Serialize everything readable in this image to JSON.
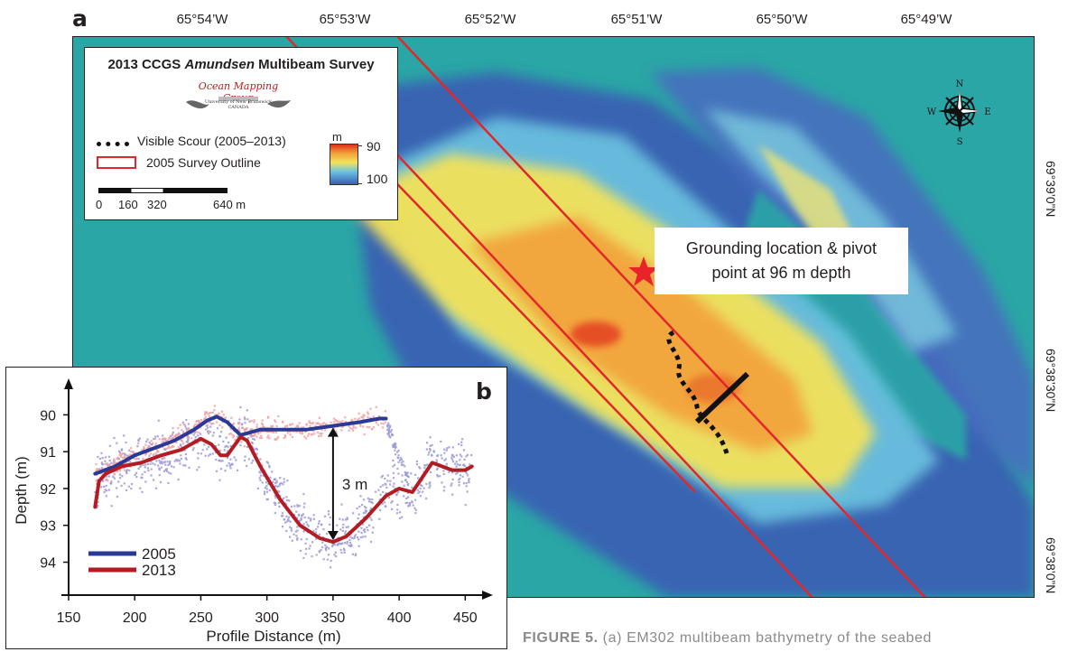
{
  "panel_a": {
    "label": "a",
    "longitude_labels": [
      "65°54’W",
      "65°53’W",
      "65°52’W",
      "65°51’W",
      "65°50’W",
      "65°49’W"
    ],
    "latitude_labels": [
      "69°39’0”N",
      "69°38’30”N",
      "69°38’0”N"
    ],
    "legend": {
      "title_prefix": "2013 CCGS ",
      "title_italic": "Amundsen",
      "title_suffix": " Multibeam Survey",
      "logo_name": "Ocean Mapping Group",
      "logo_sub_1": "University of New Brunswick",
      "logo_sub_2": "CANADA",
      "scour_label": "Visible Scour (2005–2013)",
      "outline_label": "2005 Survey Outline",
      "depth_unit": "m",
      "depth_min": "90",
      "depth_max": "100",
      "scale_ticks": [
        "0",
        "160",
        "320",
        "640 m"
      ]
    },
    "compass": {
      "n": "N",
      "s": "S",
      "e": "E",
      "w": "W"
    },
    "callout_line1": "Grounding location & pivot",
    "callout_line2": "point at 96 m depth",
    "colors": {
      "ocean": "#2aa6a6",
      "shallow_red": "#e0301c",
      "outline": "#e0282a",
      "star": "#e8242a"
    }
  },
  "panel_b": {
    "label": "b",
    "difference_label": "3 m",
    "chart_data": {
      "type": "line",
      "xlabel": "Profile Distance (m)",
      "ylabel": "Depth (m)",
      "xlim": [
        150,
        460
      ],
      "ylim": [
        94.6,
        89.5
      ],
      "x_ticks": [
        150,
        200,
        250,
        300,
        350,
        400,
        450
      ],
      "y_ticks": [
        90,
        91,
        92,
        93,
        94
      ],
      "series": [
        {
          "name": "2005",
          "color": "#283a96",
          "x": [
            170,
            185,
            200,
            215,
            230,
            245,
            255,
            262,
            270,
            280,
            295,
            310,
            330,
            350,
            370,
            385,
            390
          ],
          "y": [
            91.6,
            91.4,
            91.1,
            90.9,
            90.7,
            90.4,
            90.15,
            90.05,
            90.2,
            90.55,
            90.4,
            90.4,
            90.4,
            90.3,
            90.2,
            90.1,
            90.1
          ]
        },
        {
          "name": "2013",
          "color": "#b21c22",
          "x": [
            170,
            173,
            178,
            190,
            205,
            220,
            235,
            250,
            258,
            265,
            270,
            280,
            285,
            295,
            310,
            325,
            340,
            350,
            360,
            375,
            390,
            400,
            410,
            425,
            440,
            450,
            455
          ],
          "y": [
            92.5,
            91.8,
            91.6,
            91.4,
            91.3,
            91.1,
            90.95,
            90.65,
            90.8,
            91.1,
            91.1,
            90.6,
            90.7,
            91.4,
            92.3,
            93.0,
            93.35,
            93.45,
            93.3,
            92.8,
            92.2,
            92.0,
            92.1,
            91.3,
            91.5,
            91.5,
            91.4
          ]
        }
      ]
    }
  },
  "caption": {
    "bold": "FIGURE 5.",
    "text": " (a) EM302 multibeam bathymetry of the seabed"
  }
}
